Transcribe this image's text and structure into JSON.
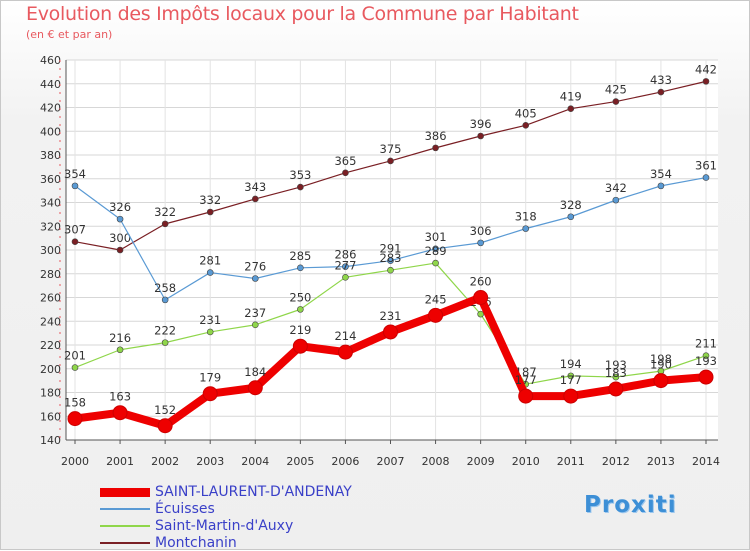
{
  "header": {
    "title": "Evolution des Impôts locaux pour la Commune par Habitant",
    "subtitle": "(en € et par an)"
  },
  "logo": {
    "text": "Proxiti"
  },
  "chart_data": {
    "type": "line",
    "title": "Evolution des Impôts locaux pour la Commune par Habitant",
    "subtitle": "(en € et par an)",
    "xlabel": "",
    "ylabel": "",
    "x": [
      2000,
      2001,
      2002,
      2003,
      2004,
      2005,
      2006,
      2007,
      2008,
      2009,
      2010,
      2011,
      2012,
      2013,
      2014
    ],
    "ylim": [
      140,
      460
    ],
    "yticks": [
      140,
      160,
      180,
      200,
      220,
      240,
      260,
      280,
      300,
      320,
      340,
      360,
      380,
      400,
      420,
      440,
      460
    ],
    "grid": true,
    "legend_position": "bottom-left",
    "series": [
      {
        "name": "Montchanin",
        "color": "#7a1f24",
        "values": [
          307,
          300,
          322,
          332,
          343,
          353,
          365,
          375,
          386,
          396,
          405,
          419,
          425,
          433,
          442
        ]
      },
      {
        "name": "Écuisses",
        "color": "#5a9ad4",
        "values": [
          354,
          326,
          258,
          281,
          276,
          285,
          286,
          291,
          301,
          306,
          318,
          328,
          342,
          354,
          361
        ]
      },
      {
        "name": "Saint-Martin-d'Auxy",
        "color": "#8fd64a",
        "values": [
          201,
          216,
          222,
          231,
          237,
          250,
          277,
          283,
          289,
          246,
          187,
          194,
          193,
          198,
          211
        ]
      },
      {
        "name": "SAINT-LAURENT-D'ANDENAY",
        "color": "#ee0000",
        "values": [
          158,
          163,
          152,
          179,
          184,
          219,
          214,
          231,
          245,
          260,
          177,
          177,
          183,
          190,
          193
        ]
      }
    ]
  }
}
